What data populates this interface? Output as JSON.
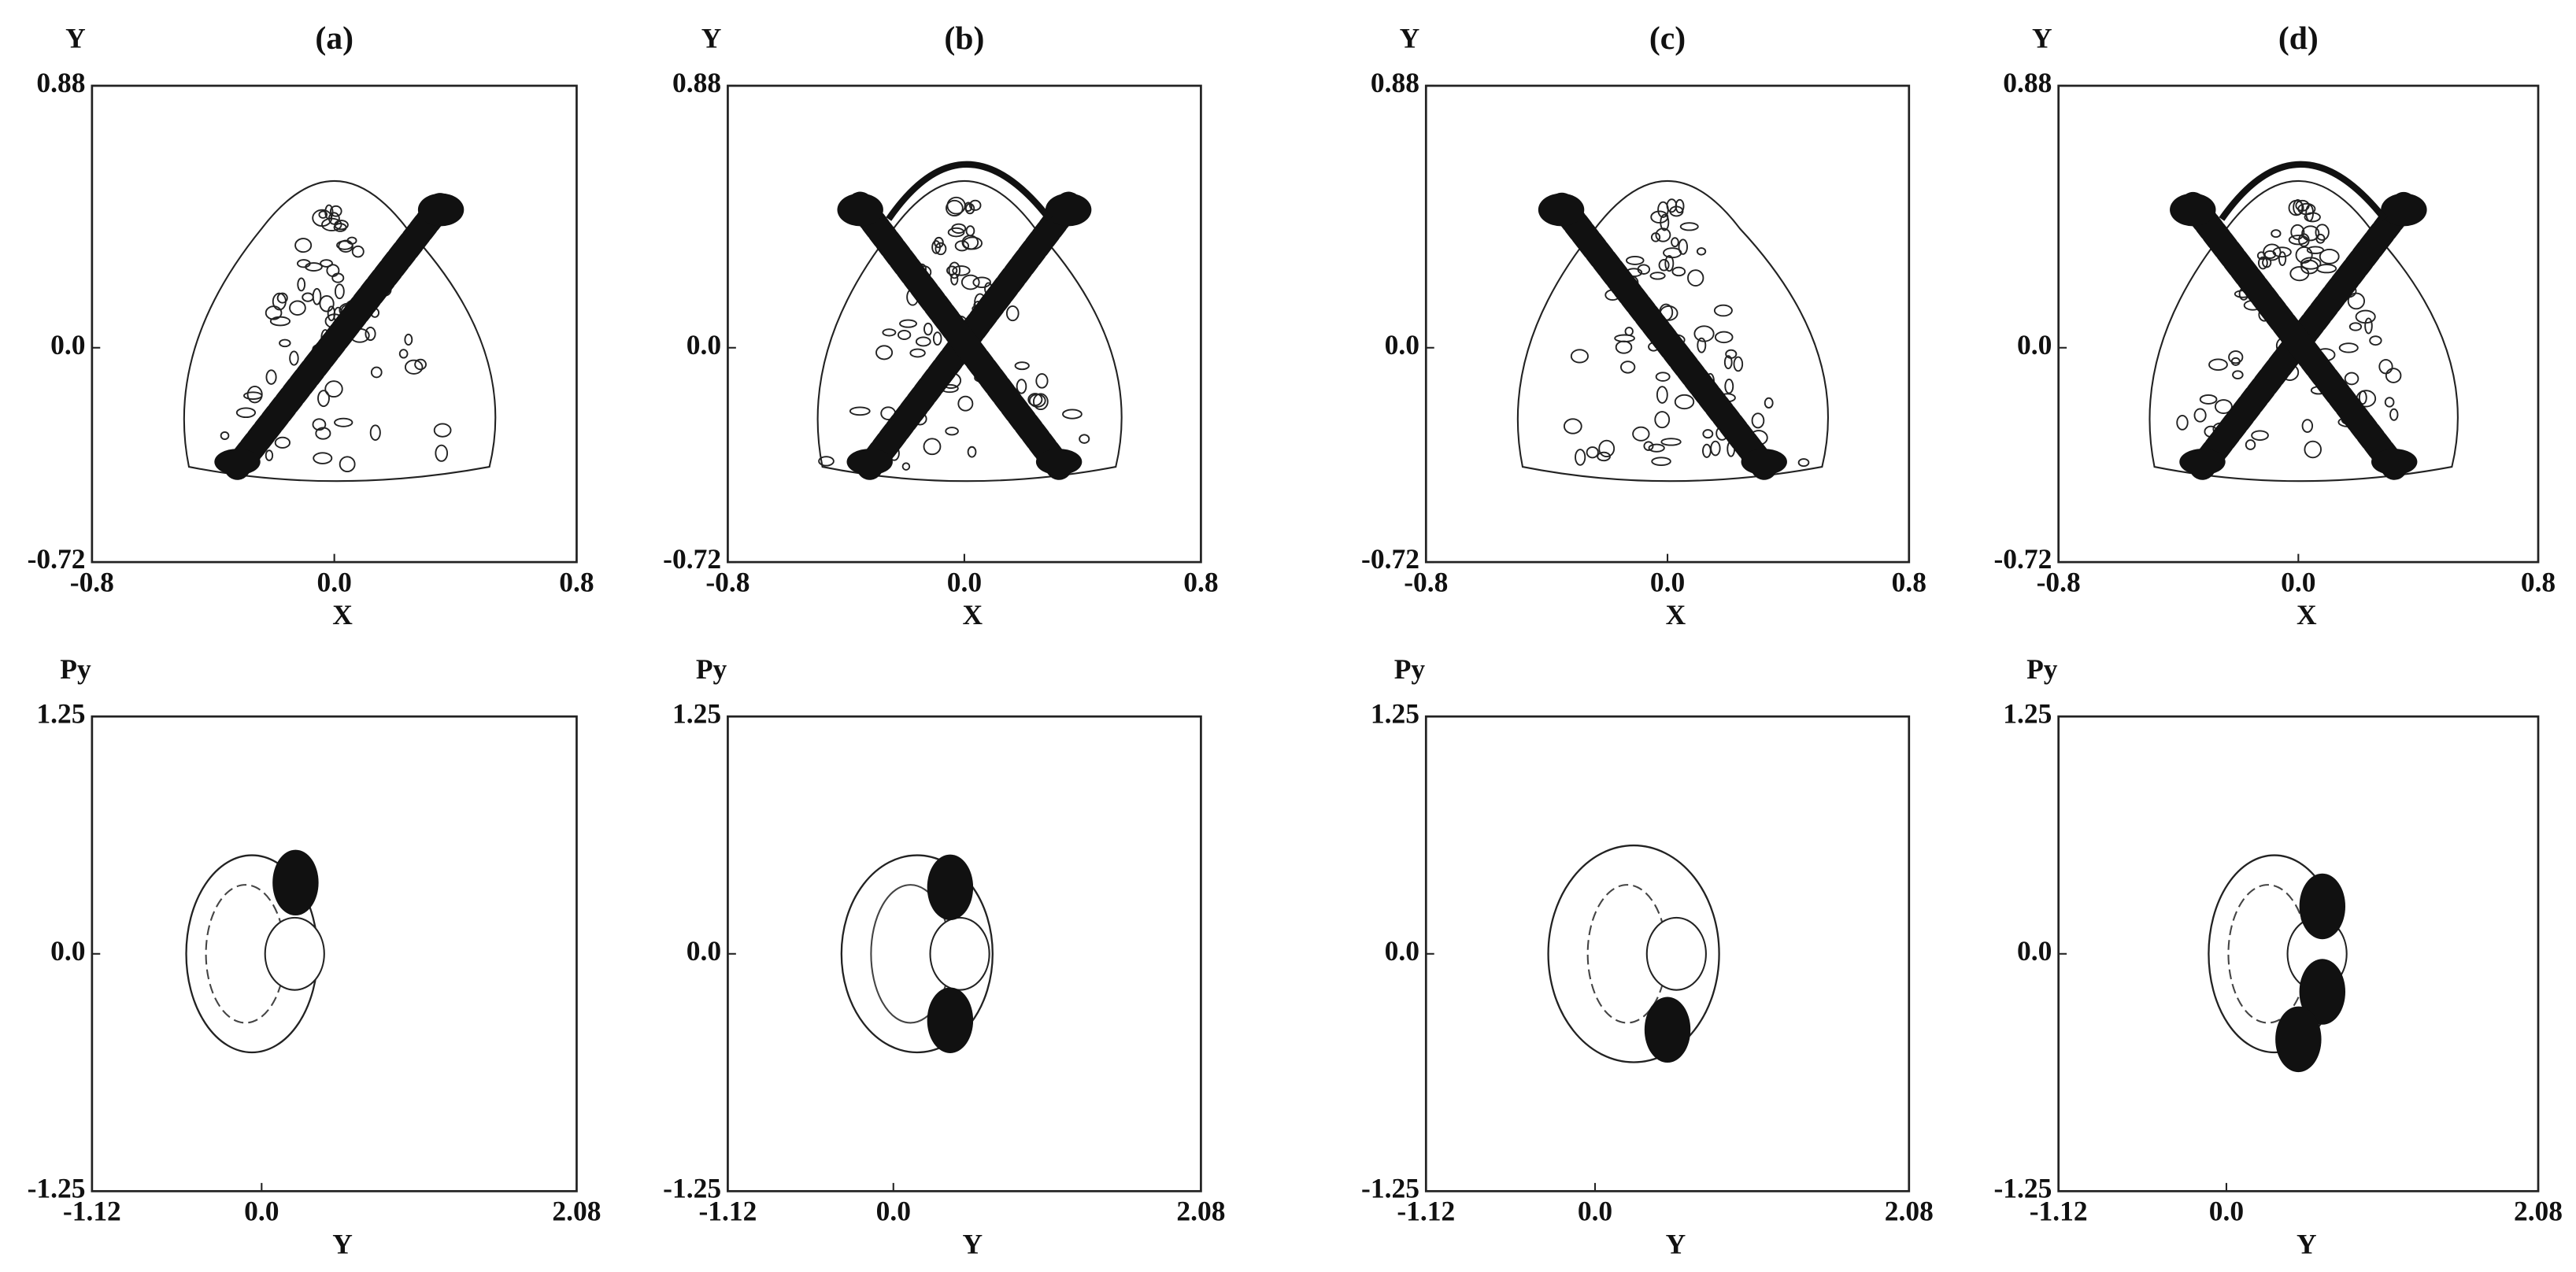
{
  "chart_data": [
    {
      "type": "contour",
      "title": "(a)",
      "x_label": "X",
      "y_label": "Y",
      "xlim": [
        -0.8,
        0.8
      ],
      "ylim": [
        -0.72,
        0.88
      ],
      "xticks": [
        -0.8,
        {
          "value": 0,
          "label": "0.0"
        },
        0.8
      ],
      "yticks": [
        -0.72,
        {
          "value": 0,
          "label": "0.0"
        },
        0.88
      ]
    },
    {
      "type": "contour",
      "title": "(b)",
      "x_label": "X",
      "y_label": "Y",
      "xlim": [
        -0.8,
        0.8
      ],
      "ylim": [
        -0.72,
        0.88
      ],
      "xticks": [
        -0.8,
        {
          "value": 0,
          "label": "0.0"
        },
        0.8
      ],
      "yticks": [
        -0.72,
        {
          "value": 0,
          "label": "0.0"
        },
        0.88
      ]
    },
    {
      "type": "contour",
      "title": "(c)",
      "x_label": "X",
      "y_label": "Y",
      "xlim": [
        -0.8,
        0.8
      ],
      "ylim": [
        -0.72,
        0.88
      ],
      "xticks": [
        -0.8,
        {
          "value": 0,
          "label": "0.0"
        },
        0.8
      ],
      "yticks": [
        -0.72,
        {
          "value": 0,
          "label": "0.0"
        },
        0.88
      ]
    },
    {
      "type": "contour",
      "title": "(d)",
      "x_label": "X",
      "y_label": "Y",
      "xlim": [
        -0.8,
        0.8
      ],
      "ylim": [
        -0.72,
        0.88
      ],
      "xticks": [
        -0.8,
        {
          "value": 0,
          "label": "0.0"
        },
        0.8
      ],
      "yticks": [
        -0.72,
        {
          "value": 0,
          "label": "0.0"
        },
        0.88
      ]
    },
    {
      "type": "contour",
      "x_label": "Y",
      "y_label": "Py",
      "xlim": [
        -1.12,
        2.08
      ],
      "ylim": [
        -1.25,
        1.25
      ],
      "xticks": [
        -1.12,
        {
          "value": 0,
          "label": "0.0"
        },
        2.08
      ],
      "yticks": [
        -1.25,
        {
          "value": 0,
          "label": "0.0"
        },
        1.25
      ]
    },
    {
      "type": "contour",
      "x_label": "Y",
      "y_label": "Py",
      "xlim": [
        -1.12,
        2.08
      ],
      "ylim": [
        -1.25,
        1.25
      ],
      "xticks": [
        -1.12,
        {
          "value": 0,
          "label": "0.0"
        },
        2.08
      ],
      "yticks": [
        -1.25,
        {
          "value": 0,
          "label": "0.0"
        },
        1.25
      ]
    },
    {
      "type": "contour",
      "x_label": "Y",
      "y_label": "Py",
      "xlim": [
        -1.12,
        2.08
      ],
      "ylim": [
        -1.25,
        1.25
      ],
      "xticks": [
        -1.12,
        {
          "value": 0,
          "label": "0.0"
        },
        2.08
      ],
      "yticks": [
        -1.25,
        {
          "value": 0,
          "label": "0.0"
        },
        1.25
      ]
    },
    {
      "type": "contour",
      "x_label": "Y",
      "y_label": "Py",
      "xlim": [
        -1.12,
        2.08
      ],
      "ylim": [
        -1.25,
        1.25
      ],
      "xticks": [
        -1.12,
        {
          "value": 0,
          "label": "0.0"
        },
        2.08
      ],
      "yticks": [
        -1.25,
        {
          "value": 0,
          "label": "0.0"
        },
        1.25
      ]
    }
  ]
}
